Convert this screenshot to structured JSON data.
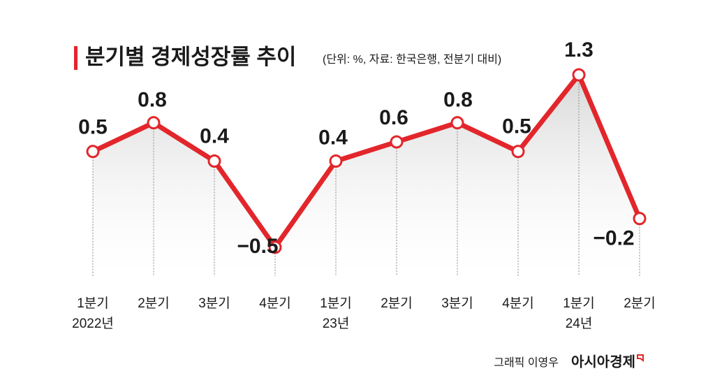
{
  "chart_data": {
    "type": "line",
    "title": "분기별 경제성장률 추이",
    "subtitle": "(단위: %, 자료: 한국은행, 전분기 대비)",
    "categories": [
      [
        "1분기",
        "2022년"
      ],
      [
        "2분기"
      ],
      [
        "3분기"
      ],
      [
        "4분기"
      ],
      [
        "1분기",
        "23년"
      ],
      [
        "2분기"
      ],
      [
        "3분기"
      ],
      [
        "4분기"
      ],
      [
        "1분기",
        "24년"
      ],
      [
        "2분기"
      ]
    ],
    "values": [
      0.5,
      0.8,
      0.4,
      -0.5,
      0.4,
      0.6,
      0.8,
      0.5,
      1.3,
      -0.2
    ],
    "value_labels": [
      "0.5",
      "0.8",
      "0.4",
      "−0.5",
      "0.4",
      "0.6",
      "0.8",
      "0.5",
      "1.3",
      "−0.2"
    ],
    "color": "#e2262b",
    "ylim": [
      -0.8,
      1.6
    ],
    "credit": "그래픽 이영우",
    "brand": "아시아경제"
  }
}
